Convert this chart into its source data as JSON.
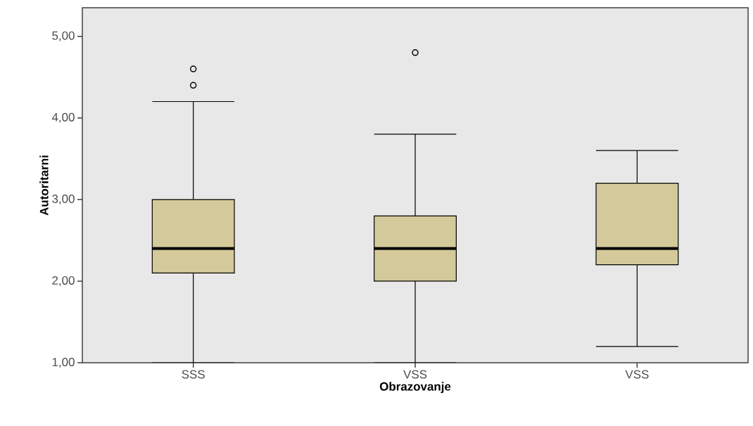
{
  "chart_data": {
    "type": "box",
    "xlabel": "Obrazovanje",
    "ylabel": "Autoritarni",
    "categories": [
      "SSS",
      "VSS",
      "VSS"
    ],
    "color": "#d4c99a",
    "boxes": [
      {
        "low": 1.0,
        "q1": 2.1,
        "median": 2.4,
        "q3": 3.0,
        "high": 4.2,
        "outliers": [
          4.4,
          4.6
        ]
      },
      {
        "low": 1.0,
        "q1": 2.0,
        "median": 2.4,
        "q3": 2.8,
        "high": 3.8,
        "outliers": [
          4.8
        ]
      },
      {
        "low": 1.2,
        "q1": 2.2,
        "median": 2.4,
        "q3": 3.2,
        "high": 3.6
      }
    ],
    "ylim": [
      1,
      5.35
    ],
    "yticks": [
      {
        "value": 1,
        "label": "1,00"
      },
      {
        "value": 2,
        "label": "2,00"
      },
      {
        "value": 3,
        "label": "3,00"
      },
      {
        "value": 4,
        "label": "4,00"
      },
      {
        "value": 5,
        "label": "5,00"
      }
    ]
  }
}
